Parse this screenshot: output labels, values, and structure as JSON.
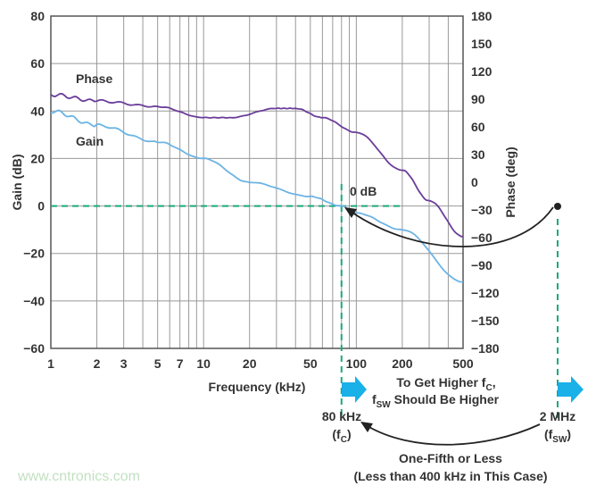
{
  "chart_data": {
    "type": "line",
    "xscale": "log",
    "xlim": [
      1,
      500
    ],
    "xlabel": "Frequency (kHz)",
    "xticks": [
      1,
      2,
      3,
      5,
      7,
      10,
      20,
      50,
      100,
      200,
      500
    ],
    "ylabel": "Gain (dB)",
    "ylim": [
      -60,
      80
    ],
    "yticks": [
      80,
      60,
      40,
      20,
      0,
      -20,
      -40,
      -60
    ],
    "y2label": "Phase (deg)",
    "y2lim": [
      -180,
      180
    ],
    "y2ticks": [
      180,
      150,
      120,
      90,
      60,
      30,
      0,
      -30,
      -60,
      -90,
      -120,
      -150,
      -180
    ],
    "grid": true,
    "series": [
      {
        "name": "Phase",
        "axis": "right",
        "color": "#6a3d9a",
        "x": [
          1,
          2,
          5,
          10,
          15,
          30,
          40,
          60,
          100,
          200,
          300,
          500
        ],
        "y": [
          95,
          88,
          82,
          70,
          70,
          80,
          80,
          70,
          54,
          13,
          -20,
          -59
        ]
      },
      {
        "name": "Gain",
        "axis": "left",
        "color": "#6cb4e4",
        "x": [
          1,
          2,
          5,
          10,
          20,
          50,
          80,
          100,
          200,
          500
        ],
        "y": [
          40,
          34,
          27,
          20,
          10,
          4,
          0,
          -3,
          -10,
          -32
        ]
      }
    ],
    "annotations": {
      "zero_db": "0 dB",
      "fc_value": "80 kHz",
      "fc_label": "f",
      "fc_sub": "C",
      "fsw_value": "2 MHz",
      "fsw_label": "f",
      "fsw_sub": "SW",
      "note1_a": "To Get Higher f",
      "note1_sub": "C",
      "note1_b": ",",
      "note2_a": "f",
      "note2_sub": "SW",
      "note2_b": " Should Be Higher",
      "note3": "One-Fifth or Less",
      "note4": "(Less than 400 kHz in This Case)",
      "watermark": "www.cntronics.com"
    },
    "colors": {
      "guide": "#1aaa7a",
      "arrow": "#1ab0e8",
      "grid": "#999999"
    }
  }
}
